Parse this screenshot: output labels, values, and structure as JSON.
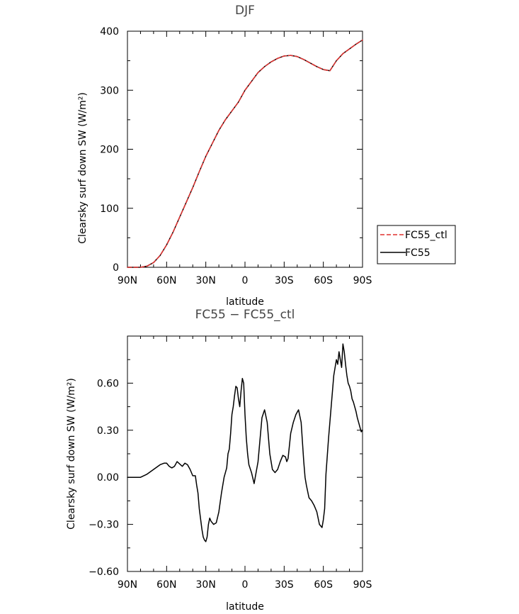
{
  "chart_data": [
    {
      "type": "line",
      "title": "DJF",
      "xlabel": "latitude",
      "ylabel": "Clearsky surf down SW (W/m²)",
      "xlim": [
        90,
        -90
      ],
      "ylim": [
        0,
        400
      ],
      "xticks": [
        90,
        60,
        30,
        0,
        -30,
        -60,
        -90
      ],
      "xtick_labels": [
        "90N",
        "60N",
        "30N",
        "0",
        "30S",
        "60S",
        "90S"
      ],
      "yticks": [
        0,
        100,
        200,
        300,
        400
      ],
      "ytick_labels": [
        "0",
        "100",
        "200",
        "300",
        "400"
      ],
      "legend_position": "right",
      "series": [
        {
          "name": "FC55_ctl",
          "color": "#e0312f",
          "dash": "dashed",
          "x": [
            90,
            85,
            80,
            75,
            70,
            65,
            60,
            55,
            50,
            45,
            40,
            35,
            30,
            25,
            20,
            15,
            10,
            5,
            0,
            -5,
            -10,
            -15,
            -20,
            -25,
            -30,
            -35,
            -40,
            -45,
            -50,
            -55,
            -60,
            -65,
            -70,
            -75,
            -80,
            -85,
            -90
          ],
          "values": [
            0,
            0,
            0,
            2,
            8,
            20,
            38,
            60,
            85,
            110,
            135,
            162,
            188,
            210,
            232,
            250,
            265,
            280,
            300,
            315,
            330,
            340,
            348,
            354,
            358,
            359,
            357,
            352,
            346,
            340,
            335,
            333,
            350,
            362,
            370,
            378,
            385
          ]
        },
        {
          "name": "FC55",
          "color": "#000000",
          "dash": "solid",
          "x": [
            90,
            85,
            80,
            75,
            70,
            65,
            60,
            55,
            50,
            45,
            40,
            35,
            30,
            25,
            20,
            15,
            10,
            5,
            0,
            -5,
            -10,
            -15,
            -20,
            -25,
            -30,
            -35,
            -40,
            -45,
            -50,
            -55,
            -60,
            -65,
            -70,
            -75,
            -80,
            -85,
            -90
          ],
          "values": [
            0,
            0,
            0,
            2,
            8,
            20,
            38,
            60,
            85,
            110,
            135,
            162,
            188,
            210,
            232,
            250,
            265,
            280,
            300,
            315,
            330,
            340,
            348,
            354,
            358,
            359,
            357,
            352,
            346,
            340,
            335,
            333,
            350,
            362,
            370,
            378,
            385
          ]
        }
      ]
    },
    {
      "type": "line",
      "title": "FC55 − FC55_ctl",
      "xlabel": "latitude",
      "ylabel": "Clearsky surf down SW (W/m²)",
      "xlim": [
        90,
        -90
      ],
      "ylim": [
        -0.6,
        0.9
      ],
      "xticks": [
        90,
        60,
        30,
        0,
        -30,
        -60,
        -90
      ],
      "xtick_labels": [
        "90N",
        "60N",
        "30N",
        "0",
        "30S",
        "60S",
        "90S"
      ],
      "yticks": [
        -0.6,
        -0.3,
        0.0,
        0.3,
        0.6
      ],
      "ytick_labels": [
        "−0.60",
        "−0.30",
        "0.00",
        "0.30",
        "0.60"
      ],
      "series": [
        {
          "color": "#000000",
          "dash": "solid",
          "x": [
            90,
            80,
            75,
            70,
            65,
            62,
            60,
            58,
            56,
            54,
            52,
            48,
            46,
            44,
            42,
            40,
            38,
            37,
            36,
            35,
            33,
            32,
            31,
            30,
            29,
            28,
            27,
            26,
            24,
            22,
            20,
            18,
            16,
            14,
            13,
            12,
            11,
            10,
            9,
            8,
            7,
            6,
            5,
            4,
            3,
            2,
            1,
            0,
            -1,
            -2,
            -3,
            -5,
            -7,
            -10,
            -13,
            -15,
            -17,
            -19,
            -21,
            -23,
            -25,
            -27,
            -29,
            -31,
            -32,
            -33,
            -35,
            -37,
            -39,
            -41,
            -43,
            -45,
            -46,
            -47,
            -49,
            -51,
            -53,
            -55,
            -57,
            -59,
            -60,
            -61,
            -62,
            -64,
            -66,
            -68,
            -70,
            -71,
            -72,
            -73,
            -74,
            -75,
            -76,
            -77,
            -78,
            -79,
            -80,
            -81,
            -82,
            -83,
            -84,
            -85,
            -86,
            -87,
            -88,
            -89,
            -90
          ],
          "values": [
            0,
            0,
            0.02,
            0.05,
            0.08,
            0.09,
            0.09,
            0.07,
            0.06,
            0.07,
            0.1,
            0.07,
            0.09,
            0.08,
            0.05,
            0.01,
            0.01,
            -0.05,
            -0.1,
            -0.2,
            -0.33,
            -0.38,
            -0.4,
            -0.41,
            -0.38,
            -0.3,
            -0.26,
            -0.28,
            -0.3,
            -0.29,
            -0.22,
            -0.1,
            0.0,
            0.06,
            0.15,
            0.18,
            0.28,
            0.4,
            0.45,
            0.52,
            0.58,
            0.57,
            0.5,
            0.45,
            0.55,
            0.63,
            0.6,
            0.4,
            0.25,
            0.15,
            0.08,
            0.03,
            -0.04,
            0.1,
            0.38,
            0.43,
            0.35,
            0.15,
            0.05,
            0.03,
            0.05,
            0.1,
            0.14,
            0.13,
            0.1,
            0.12,
            0.28,
            0.35,
            0.4,
            0.43,
            0.35,
            0.1,
            0.0,
            -0.05,
            -0.13,
            -0.15,
            -0.18,
            -0.22,
            -0.3,
            -0.32,
            -0.27,
            -0.2,
            0.02,
            0.25,
            0.45,
            0.65,
            0.75,
            0.72,
            0.8,
            0.75,
            0.7,
            0.85,
            0.8,
            0.72,
            0.65,
            0.6,
            0.58,
            0.55,
            0.5,
            0.48,
            0.45,
            0.42,
            0.38,
            0.35,
            0.32,
            0.29,
            0.3
          ]
        }
      ]
    }
  ]
}
